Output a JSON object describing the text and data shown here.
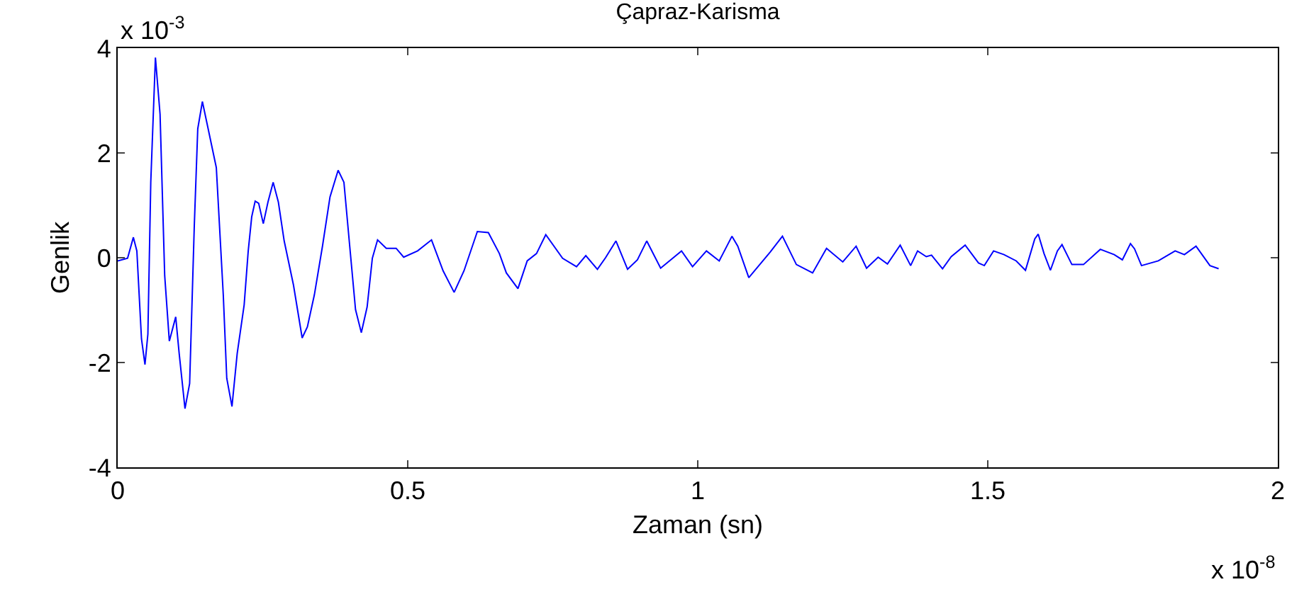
{
  "chart_data": {
    "type": "line",
    "title": "Çapraz-Karisma",
    "xlabel": "Zaman (sn)",
    "ylabel": "Genlik",
    "annotations": [
      "x 10$^{-3}$",
      "x 10$^{-8}$"
    ],
    "xlim": [
      0,
      2
    ],
    "xticks": [
      0,
      0.5,
      1,
      1.5,
      2
    ],
    "ylim": [
      -4,
      4
    ],
    "yticks": [
      -4,
      -2,
      0,
      2,
      4
    ],
    "series": [
      {
        "color": "#0000ff",
        "x": [
          0,
          0.017,
          0.027,
          0.033,
          0.041,
          0.047,
          0.052,
          0.057,
          0.065,
          0.073,
          0.081,
          0.089,
          0.1,
          0.106,
          0.116,
          0.124,
          0.132,
          0.138,
          0.146,
          0.154,
          0.17,
          0.182,
          0.188,
          0.197,
          0.206,
          0.218,
          0.225,
          0.231,
          0.237,
          0.243,
          0.251,
          0.259,
          0.268,
          0.277,
          0.287,
          0.303,
          0.318,
          0.327,
          0.339,
          0.353,
          0.366,
          0.38,
          0.39,
          0.4,
          0.41,
          0.42,
          0.43,
          0.439,
          0.448,
          0.463,
          0.48,
          0.493,
          0.517,
          0.541,
          0.561,
          0.58,
          0.597,
          0.62,
          0.639,
          0.658,
          0.67,
          0.69,
          0.706,
          0.722,
          0.738,
          0.767,
          0.791,
          0.807,
          0.827,
          0.841,
          0.859,
          0.879,
          0.896,
          0.912,
          0.936,
          0.972,
          0.991,
          1.015,
          1.037,
          1.059,
          1.069,
          1.088,
          1.125,
          1.146,
          1.17,
          1.198,
          1.222,
          1.25,
          1.273,
          1.291,
          1.311,
          1.327,
          1.349,
          1.367,
          1.379,
          1.394,
          1.403,
          1.422,
          1.437,
          1.461,
          1.484,
          1.494,
          1.51,
          1.528,
          1.549,
          1.565,
          1.581,
          1.587,
          1.597,
          1.608,
          1.62,
          1.628,
          1.645,
          1.665,
          1.694,
          1.718,
          1.732,
          1.746,
          1.753,
          1.765,
          1.794,
          1.823,
          1.839,
          1.859,
          1.883,
          1.898
        ],
        "values": [
          -0.06,
          -0.01,
          0.39,
          0.13,
          -1.55,
          -2.04,
          -1.46,
          1.44,
          3.82,
          2.74,
          -0.34,
          -1.59,
          -1.13,
          -1.83,
          -2.88,
          -2.4,
          0.6,
          2.46,
          2.98,
          2.56,
          1.72,
          -0.71,
          -2.3,
          -2.84,
          -1.83,
          -0.9,
          0.13,
          0.78,
          1.08,
          1.04,
          0.65,
          1.06,
          1.44,
          1.06,
          0.32,
          -0.52,
          -1.53,
          -1.32,
          -0.71,
          0.22,
          1.16,
          1.67,
          1.44,
          0.22,
          -0.99,
          -1.43,
          -0.94,
          -0.01,
          0.34,
          0.18,
          0.18,
          0.01,
          0.13,
          0.34,
          -0.25,
          -0.66,
          -0.25,
          0.5,
          0.48,
          0.08,
          -0.29,
          -0.59,
          -0.06,
          0.08,
          0.44,
          -0.01,
          -0.17,
          0.04,
          -0.22,
          0.0,
          0.32,
          -0.22,
          -0.04,
          0.32,
          -0.2,
          0.13,
          -0.17,
          0.13,
          -0.06,
          0.41,
          0.22,
          -0.38,
          0.11,
          0.41,
          -0.13,
          -0.29,
          0.18,
          -0.08,
          0.22,
          -0.2,
          0.01,
          -0.12,
          0.24,
          -0.15,
          0.13,
          0.02,
          0.05,
          -0.21,
          0.02,
          0.24,
          -0.1,
          -0.15,
          0.13,
          0.06,
          -0.06,
          -0.24,
          0.36,
          0.45,
          0.08,
          -0.24,
          0.13,
          0.25,
          -0.13,
          -0.13,
          0.16,
          0.06,
          -0.04,
          0.27,
          0.17,
          -0.15,
          -0.06,
          0.13,
          0.06,
          0.22,
          -0.15,
          -0.21
        ]
      }
    ]
  }
}
